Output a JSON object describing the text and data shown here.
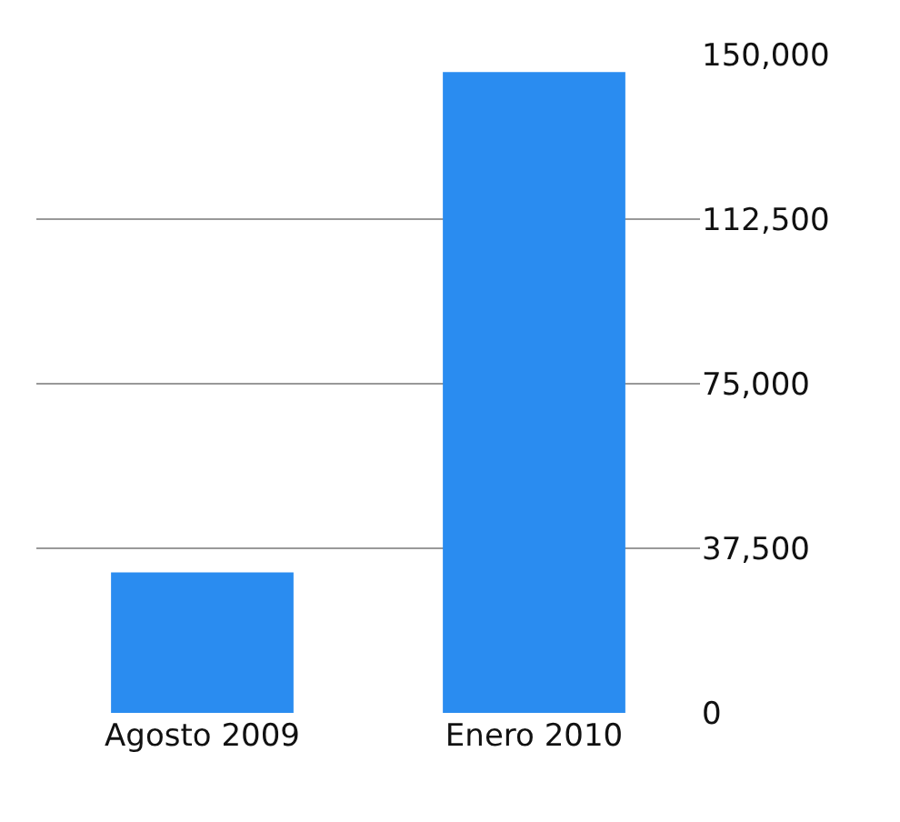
{
  "chart_data": {
    "type": "bar",
    "categories": [
      "Agosto 2009",
      "Enero 2010"
    ],
    "values": [
      32000,
      146000
    ],
    "color": "#2a8cf0",
    "ylim": [
      0,
      150000
    ],
    "yticks": [
      {
        "value": 0,
        "label": "0"
      },
      {
        "value": 37500,
        "label": "37,500"
      },
      {
        "value": 75000,
        "label": "75,000"
      },
      {
        "value": 112500,
        "label": "112,500"
      },
      {
        "value": 150000,
        "label": "150,000"
      }
    ],
    "grid": "y"
  }
}
